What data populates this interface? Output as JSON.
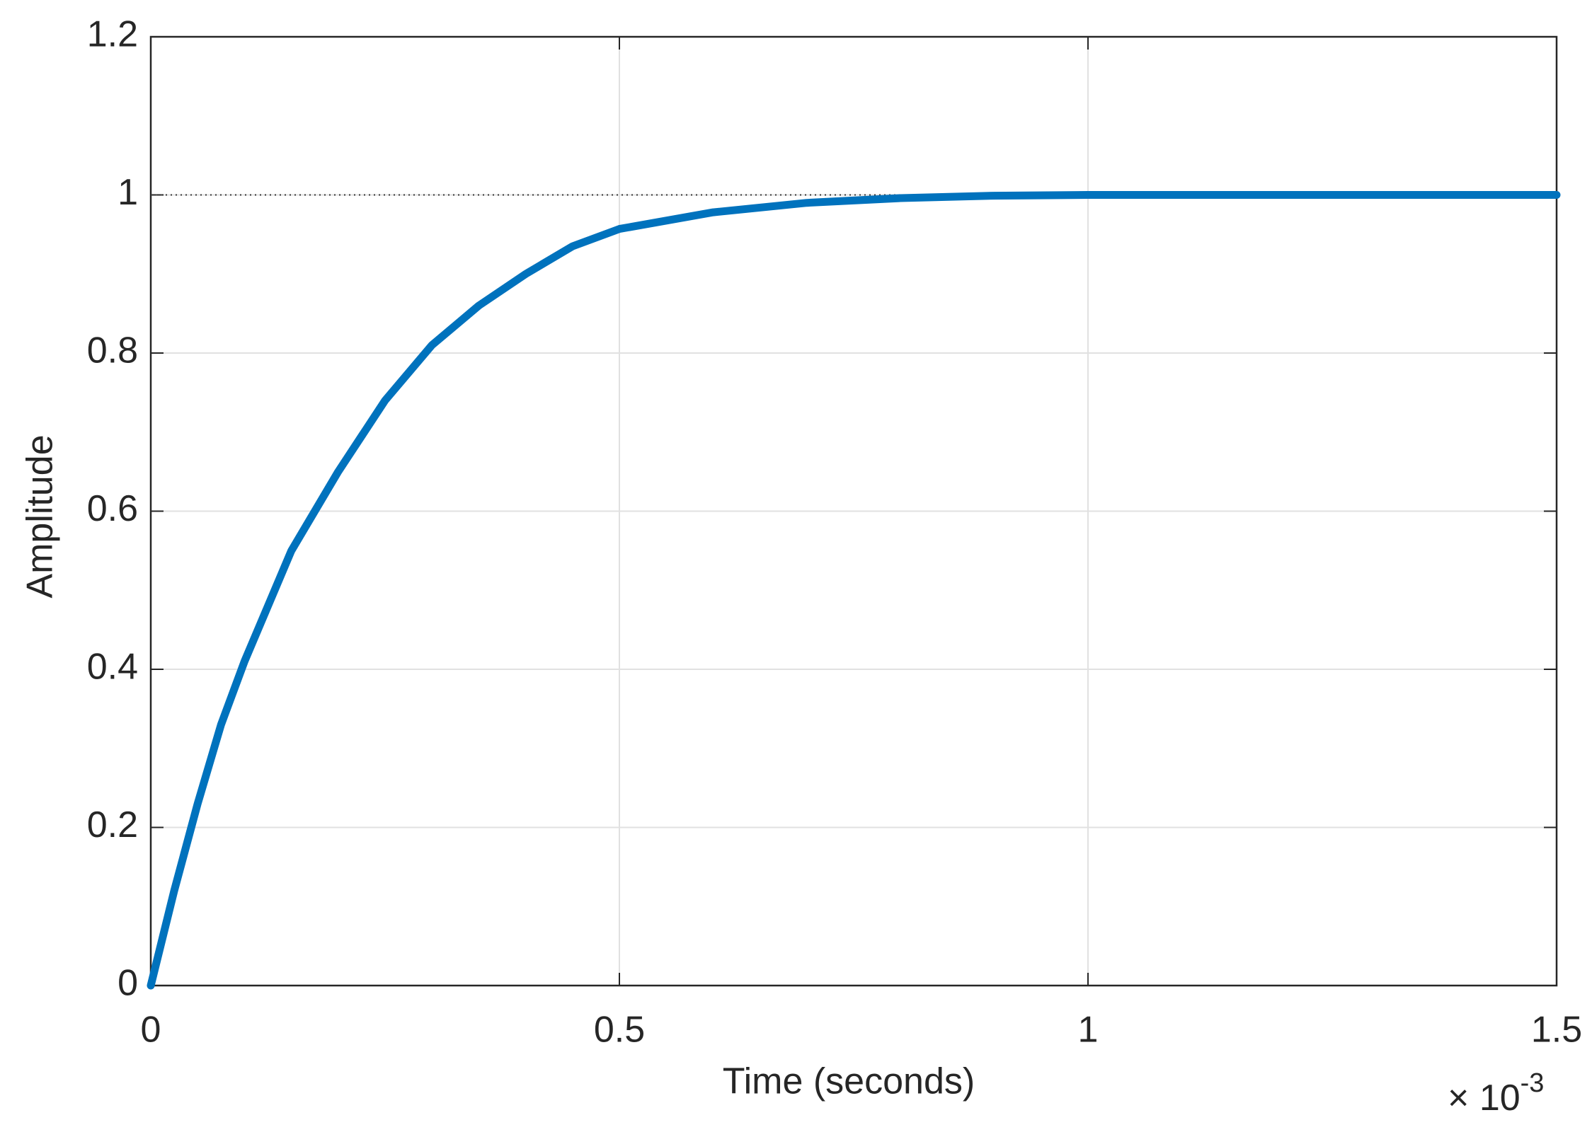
{
  "chart_data": {
    "type": "line",
    "xlabel": "Time (seconds)",
    "ylabel": "Amplitude",
    "x_multiplier": {
      "base": "× 10",
      "exponent": "-3"
    },
    "x": [
      0,
      0.025,
      0.05,
      0.075,
      0.1,
      0.125,
      0.15,
      0.2,
      0.25,
      0.3,
      0.35,
      0.4,
      0.45,
      0.5,
      0.6,
      0.7,
      0.8,
      0.9,
      1.0,
      1.25,
      1.5
    ],
    "values": [
      0,
      0.12,
      0.23,
      0.33,
      0.41,
      0.48,
      0.55,
      0.65,
      0.74,
      0.81,
      0.86,
      0.9,
      0.935,
      0.957,
      0.978,
      0.99,
      0.996,
      0.999,
      1.0,
      1.0,
      1.0
    ],
    "color": "#0072bd",
    "steady_state": 1,
    "xlim": [
      0,
      1.5
    ],
    "ylim": [
      0,
      1.2
    ],
    "xticks": [
      0,
      0.5,
      1,
      1.5
    ],
    "yticks": [
      0,
      0.2,
      0.4,
      0.6,
      0.8,
      1,
      1.2
    ],
    "grid": true
  }
}
